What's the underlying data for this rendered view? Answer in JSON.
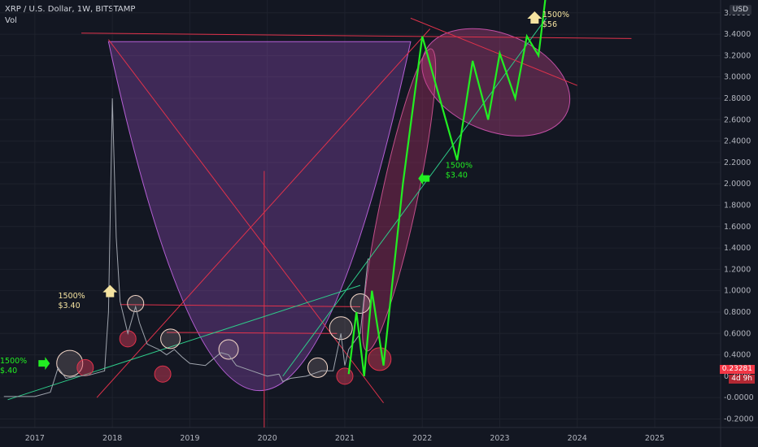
{
  "header": {
    "symbol_line": "XRP / U.S. Dollar, 1W, BITSTAMP",
    "volume_label": "Vol"
  },
  "currency_button": "USD",
  "price_tag": {
    "value": "0.23281",
    "countdown": "4d 9h"
  },
  "chart_data": {
    "type": "line",
    "title": "XRP / U.S. Dollar, 1W, BITSTAMP",
    "xlabel": "",
    "ylabel": "",
    "x_ticks": [
      "2017",
      "2018",
      "2019",
      "2020",
      "2021",
      "2022",
      "2023",
      "2024",
      "2025"
    ],
    "y_ticks": [
      "-0.2000",
      "-0.0000",
      "0.2000",
      "0.4000",
      "0.6000",
      "0.8000",
      "1.0000",
      "1.2000",
      "1.4000",
      "1.6000",
      "1.8000",
      "2.0000",
      "2.2000",
      "2.4000",
      "2.6000",
      "2.8000",
      "3.0000",
      "3.2000",
      "3.4000",
      "3.6000"
    ],
    "ylim": [
      -0.28,
      3.72
    ],
    "xlim": [
      2016.55,
      2025.85
    ],
    "grid": true,
    "series": [
      {
        "kind": "price",
        "color": "#9fa4ad",
        "x": [
          2016.6,
          2017.0,
          2017.2,
          2017.3,
          2017.4,
          2017.55,
          2017.7,
          2017.9,
          2017.95,
          2018.0,
          2018.05,
          2018.1,
          2018.2,
          2018.3,
          2018.35,
          2018.45,
          2018.6,
          2018.7,
          2018.8,
          2018.9,
          2019.0,
          2019.2,
          2019.4,
          2019.5,
          2019.6,
          2019.8,
          2020.0,
          2020.15,
          2020.2,
          2020.3,
          2020.5,
          2020.7,
          2020.85,
          2020.95,
          2021.0,
          2021.05,
          2021.1,
          2021.2,
          2021.3
        ],
        "y": [
          0.01,
          0.01,
          0.05,
          0.28,
          0.18,
          0.2,
          0.21,
          0.25,
          0.8,
          2.8,
          1.5,
          0.9,
          0.6,
          0.85,
          0.7,
          0.5,
          0.45,
          0.4,
          0.45,
          0.38,
          0.32,
          0.3,
          0.42,
          0.4,
          0.3,
          0.25,
          0.2,
          0.22,
          0.15,
          0.18,
          0.2,
          0.25,
          0.25,
          0.6,
          0.3,
          0.45,
          0.5,
          0.6,
          1.3
        ]
      },
      {
        "kind": "projection",
        "color": "#22ee22",
        "x": [
          2021.05,
          2021.15,
          2021.25,
          2021.35,
          2021.5,
          2021.75,
          2022.0,
          2022.45,
          2022.65,
          2022.85,
          2023.0,
          2023.2,
          2023.35,
          2023.5,
          2023.6
        ],
        "y": [
          0.22,
          0.8,
          0.2,
          1.0,
          0.3,
          2.0,
          3.38,
          2.22,
          3.15,
          2.6,
          3.22,
          2.8,
          3.38,
          3.2,
          3.8
        ]
      }
    ],
    "annotations": [
      {
        "text": [
          "1500%",
          "$.40"
        ],
        "x": 2016.55,
        "y": 0.32,
        "color": "#22ee22"
      },
      {
        "text": [
          "1500%",
          "$3.40"
        ],
        "x": 2017.3,
        "y": 0.93,
        "color": "#f5e3a0"
      },
      {
        "text": [
          "1500%",
          "$3.40"
        ],
        "x": 2022.3,
        "y": 2.15,
        "color": "#22ee22"
      },
      {
        "text": [
          "1500%",
          "$56"
        ],
        "x": 2023.55,
        "y": 3.56,
        "color": "#f5e3a0"
      }
    ]
  }
}
